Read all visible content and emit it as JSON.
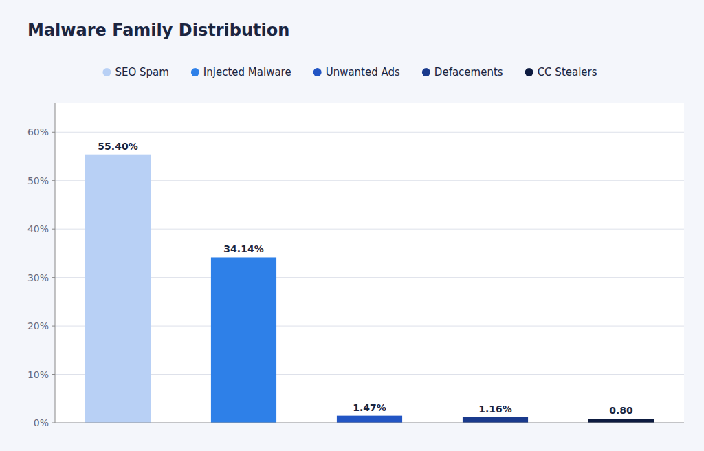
{
  "chart_data": {
    "type": "bar",
    "title": "Malware Family Distribution",
    "categories": [
      "SEO Spam",
      "Injected Malware",
      "Unwanted Ads",
      "Defacements",
      "CC Stealers"
    ],
    "values": [
      55.4,
      34.14,
      1.47,
      1.16,
      0.8
    ],
    "value_labels": [
      "55.40%",
      "34.14%",
      "1.47%",
      "1.16%",
      "0.80"
    ],
    "colors": [
      "#b8d0f5",
      "#2e80e8",
      "#2255c4",
      "#1a3a8c",
      "#0d1b40"
    ],
    "ylim": [
      0,
      66
    ],
    "yticks": [
      {
        "value": 0,
        "label": "0%"
      },
      {
        "value": 10,
        "label": "10%"
      },
      {
        "value": 20,
        "label": "20%"
      },
      {
        "value": 30,
        "label": "30%"
      },
      {
        "value": 40,
        "label": "40%"
      },
      {
        "value": 50,
        "label": "50%"
      },
      {
        "value": 60,
        "label": "60%"
      }
    ],
    "grid": true,
    "legend": "top",
    "data_labels": true,
    "tick_labels": "y"
  }
}
